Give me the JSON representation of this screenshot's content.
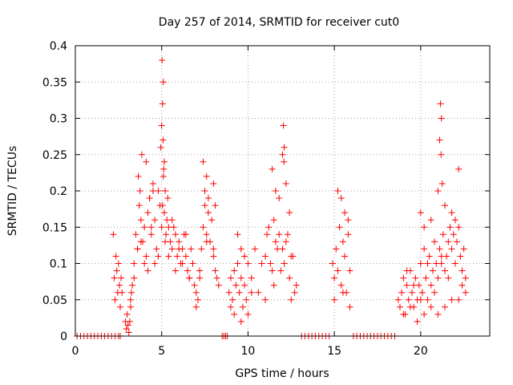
{
  "chart_data": {
    "type": "scatter",
    "title": "Day 257 of 2014, SRMTID for receiver cut0",
    "xlabel": "GPS time / hours",
    "ylabel": "SRMTID / TECUs",
    "xlim": [
      0,
      24
    ],
    "ylim": [
      0,
      0.4
    ],
    "grid": true,
    "marker": "+",
    "color": "#ff0000",
    "x_ticks": [
      0,
      5,
      10,
      15,
      20
    ],
    "x_tick_labels": [
      "0",
      "5",
      "10",
      "15",
      "20"
    ],
    "y_ticks": [
      0,
      0.05,
      0.1,
      0.15,
      0.2,
      0.25,
      0.3,
      0.35,
      0.4
    ],
    "y_tick_labels": [
      "0",
      "0.05",
      "0.1",
      "0.15",
      "0.2",
      "0.25",
      "0.3",
      "0.35",
      "0.4"
    ],
    "series": [
      {
        "name": "SRMTID",
        "x": [
          0.1,
          0.3,
          0.5,
          0.7,
          0.9,
          1.1,
          1.3,
          1.5,
          1.7,
          1.9,
          2.1,
          2.3,
          2.5,
          2.6,
          2.2,
          2.25,
          2.3,
          2.35,
          2.4,
          2.45,
          2.5,
          2.55,
          2.6,
          2.65,
          2.7,
          2.9,
          2.95,
          3.0,
          3.05,
          3.1,
          3.15,
          3.2,
          3.25,
          3.3,
          3.4,
          3.5,
          3.6,
          3.7,
          3.8,
          3.9,
          4.0,
          4.1,
          4.2,
          4.3,
          4.4,
          4.5,
          4.6,
          4.7,
          4.8,
          4.9,
          5.0,
          5.05,
          5.1,
          5.15,
          5.2,
          5.25,
          5.3,
          5.35,
          5.4,
          5.5,
          5.6,
          5.7,
          5.8,
          5.9,
          6.0,
          6.1,
          6.2,
          6.3,
          6.4,
          6.5,
          6.6,
          6.7,
          6.8,
          6.9,
          7.0,
          7.1,
          7.2,
          7.3,
          7.4,
          7.5,
          7.6,
          7.7,
          7.8,
          7.9,
          8.0,
          8.1,
          8.2,
          8.3,
          8.5,
          8.6,
          8.7,
          8.8,
          8.9,
          9.0,
          9.1,
          9.2,
          9.3,
          9.4,
          9.5,
          9.6,
          9.7,
          9.8,
          9.9,
          10.0,
          10.2,
          10.4,
          10.6,
          10.8,
          11.0,
          11.2,
          11.4,
          11.6,
          11.8,
          12.0,
          12.1,
          12.2,
          12.4,
          12.6,
          12.8,
          11.1,
          11.3,
          11.5,
          11.7,
          11.9,
          12.3,
          12.5,
          12.7,
          13.1,
          13.3,
          13.5,
          13.7,
          13.9,
          14.1,
          14.3,
          14.5,
          14.7,
          14.9,
          15.0,
          15.1,
          15.2,
          15.3,
          15.4,
          15.5,
          15.6,
          15.7,
          15.8,
          15.9,
          16.1,
          16.3,
          16.5,
          16.7,
          16.9,
          17.1,
          17.3,
          17.5,
          17.7,
          17.9,
          18.1,
          18.3,
          18.5,
          18.7,
          18.8,
          18.9,
          19.0,
          19.1,
          19.2,
          19.3,
          19.4,
          19.5,
          19.6,
          19.7,
          19.8,
          19.9,
          20.0,
          20.1,
          20.2,
          20.3,
          20.4,
          20.5,
          20.6,
          20.7,
          20.8,
          20.9,
          21.0,
          21.1,
          21.2,
          21.3,
          21.4,
          21.5,
          21.6,
          21.7,
          21.8,
          21.9,
          22.0,
          22.1,
          22.2,
          22.3,
          22.4,
          22.5,
          22.6,
          19.2,
          19.6,
          20.0,
          20.4,
          20.8,
          21.2,
          21.6,
          22.0,
          22.4,
          3.6,
          4.0,
          4.4,
          4.8,
          5.2,
          5.6,
          6.0,
          6.4,
          6.8,
          7.2,
          7.6,
          8.0,
          5.0,
          5.05,
          5.1,
          5.02,
          5.08,
          4.95,
          5.15,
          5.12,
          12.05,
          12.1,
          12.0,
          12.08,
          21.15,
          21.2,
          21.1,
          21.18,
          21.25,
          3.65,
          3.75,
          3.85,
          4.1,
          4.3,
          4.5,
          7.4,
          7.5,
          7.6,
          7.7,
          8.0,
          8.1,
          9.4,
          9.6,
          9.8,
          10.0,
          11.4,
          11.6,
          11.8,
          12.2,
          12.4,
          15.2,
          15.4,
          15.6,
          15.8,
          20.0,
          20.2,
          20.6,
          21.0,
          21.4,
          21.8,
          22.2,
          3.2,
          3.4,
          3.8,
          4.2,
          4.6,
          5.4,
          5.8,
          6.2,
          6.6,
          7.0,
          9.0,
          9.2,
          9.6,
          10.2,
          11.0,
          11.5,
          12.5,
          15.0,
          15.5,
          15.9,
          19.0,
          19.4,
          19.8,
          20.2,
          20.6,
          21.0,
          21.4,
          21.8,
          22.2,
          22.6
        ],
        "y": [
          0,
          0,
          0,
          0,
          0,
          0,
          0,
          0,
          0,
          0,
          0,
          0,
          0,
          0,
          0.14,
          0.08,
          0.05,
          0.11,
          0.09,
          0.06,
          0.1,
          0.07,
          0.04,
          0.08,
          0.06,
          0.02,
          0.01,
          0.03,
          0.015,
          0.005,
          0.02,
          0.04,
          0.06,
          0.07,
          0.1,
          0.14,
          0.12,
          0.18,
          0.16,
          0.13,
          0.15,
          0.11,
          0.17,
          0.19,
          0.14,
          0.21,
          0.16,
          0.12,
          0.2,
          0.18,
          0.15,
          0.18,
          0.22,
          0.17,
          0.2,
          0.14,
          0.16,
          0.19,
          0.15,
          0.13,
          0.12,
          0.15,
          0.14,
          0.11,
          0.13,
          0.1,
          0.12,
          0.14,
          0.11,
          0.09,
          0.08,
          0.12,
          0.1,
          0.07,
          0.06,
          0.05,
          0.08,
          0.12,
          0.15,
          0.18,
          0.14,
          0.17,
          0.13,
          0.16,
          0.11,
          0.09,
          0.08,
          0.07,
          0.0,
          0.0,
          0.0,
          0.0,
          0.06,
          0.08,
          0.05,
          0.09,
          0.07,
          0.1,
          0.06,
          0.08,
          0.04,
          0.07,
          0.05,
          0.03,
          0.08,
          0.12,
          0.06,
          0.1,
          0.11,
          0.15,
          0.09,
          0.13,
          0.14,
          0.12,
          0.1,
          0.13,
          0.08,
          0.11,
          0.07,
          0.14,
          0.1,
          0.16,
          0.12,
          0.09,
          0.14,
          0.11,
          0.06,
          0,
          0,
          0,
          0,
          0,
          0,
          0,
          0,
          0,
          0.1,
          0.08,
          0.12,
          0.09,
          0.15,
          0.07,
          0.13,
          0.11,
          0.06,
          0.14,
          0.09,
          0,
          0,
          0,
          0,
          0,
          0,
          0,
          0,
          0,
          0,
          0,
          0,
          0,
          0.05,
          0.04,
          0.06,
          0.08,
          0.03,
          0.07,
          0.05,
          0.09,
          0.06,
          0.04,
          0.08,
          0.05,
          0.07,
          0.1,
          0.06,
          0.12,
          0.08,
          0.05,
          0.11,
          0.07,
          0.09,
          0.13,
          0.1,
          0.08,
          0.12,
          0.1,
          0.14,
          0.09,
          0.11,
          0.13,
          0.15,
          0.12,
          0.14,
          0.16,
          0.13,
          0.15,
          0.11,
          0.09,
          0.12,
          0.08,
          0.09,
          0.07,
          0.05,
          0.1,
          0.06,
          0.11,
          0.08,
          0.1,
          0.07,
          0.12,
          0.1,
          0.15,
          0.11,
          0.13,
          0.16,
          0.12,
          0.14,
          0.1,
          0.09,
          0.13,
          0.12,
          0.29,
          0.32,
          0.35,
          0.38,
          0.27,
          0.26,
          0.24,
          0.23,
          0.29,
          0.26,
          0.25,
          0.24,
          0.32,
          0.3,
          0.27,
          0.25,
          0.21,
          0.22,
          0.2,
          0.25,
          0.24,
          0.19,
          0.2,
          0.24,
          0.2,
          0.22,
          0.19,
          0.21,
          0.18,
          0.14,
          0.12,
          0.11,
          0.1,
          0.23,
          0.2,
          0.19,
          0.21,
          0.17,
          0.2,
          0.19,
          0.17,
          0.16,
          0.17,
          0.15,
          0.16,
          0.2,
          0.18,
          0.17,
          0.23,
          0.05,
          0.08,
          0.13,
          0.09,
          0.1,
          0.11,
          0.09,
          0.1,
          0.08,
          0.04,
          0.04,
          0.03,
          0.02,
          0.06,
          0.05,
          0.07,
          0.05,
          0.05,
          0.06,
          0.04,
          0.03,
          0.04,
          0.02,
          0.03,
          0.04,
          0.03,
          0.04,
          0.05,
          0.05,
          0.06
        ]
      }
    ]
  }
}
